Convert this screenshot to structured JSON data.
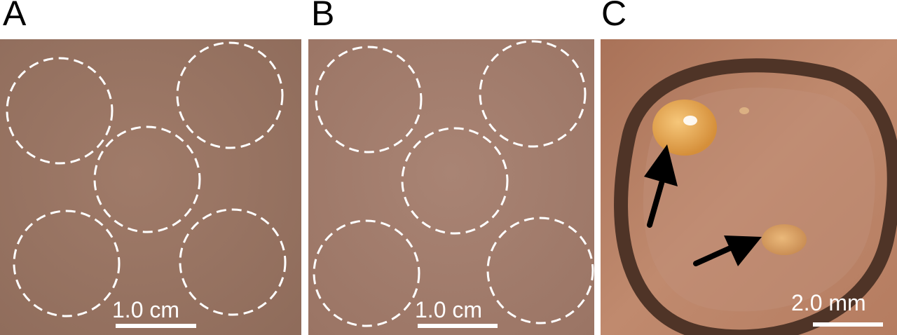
{
  "panels": [
    {
      "letter": "A",
      "scale_label": "1.0 cm"
    },
    {
      "letter": "B",
      "scale_label": "1.0 cm"
    },
    {
      "letter": "C",
      "scale_label": "2.0 mm"
    }
  ],
  "colors": {
    "panel_a_skin": "#9a7563",
    "panel_b_skin": "#a17b6c",
    "panel_c_skin": "#b97f62",
    "ring_dark": "#4f3427",
    "droplet": "#e6a44c",
    "circle_outline": "#ffffff",
    "arrow": "#000000"
  }
}
